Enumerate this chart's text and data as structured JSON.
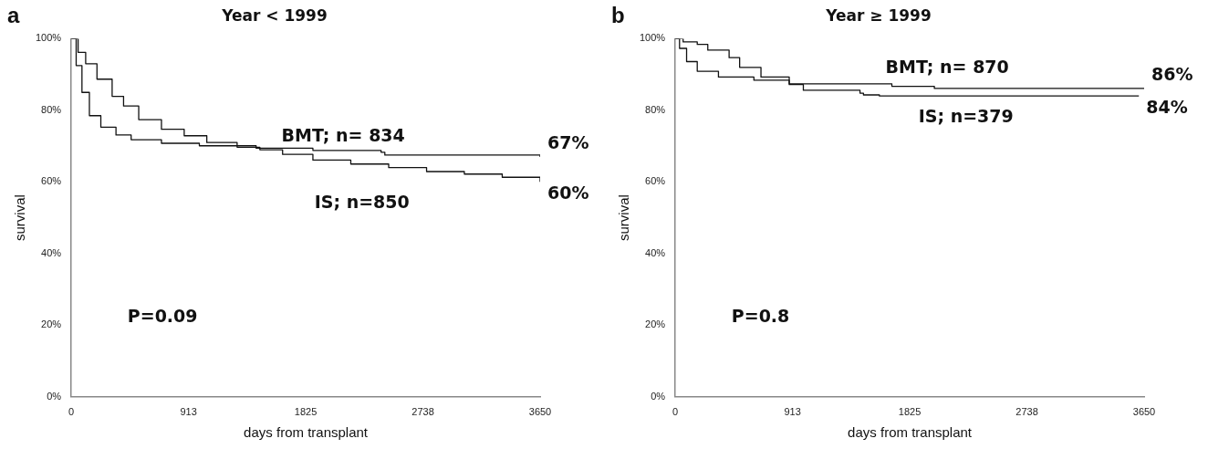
{
  "chart_data": [
    {
      "type": "step",
      "title": "Year < 1999",
      "xlabel": "days from transplant",
      "ylabel": "survival",
      "xlim": [
        0,
        3650
      ],
      "xticks": [
        0,
        913,
        1825,
        2738,
        3650
      ],
      "ylim": [
        0,
        100
      ],
      "yticks": [
        {
          "value": 0,
          "label": "0%"
        },
        {
          "value": 20,
          "label": "20%"
        },
        {
          "value": 40,
          "label": "40%"
        },
        {
          "value": 60,
          "label": "60%"
        },
        {
          "value": 80,
          "label": "80%"
        },
        {
          "value": 100,
          "label": "100%"
        }
      ],
      "grid": false,
      "legend": false,
      "series": [
        {
          "name": "BMT; n= 834",
          "color": "#111111",
          "x": [
            0,
            38,
            83,
            141,
            230,
            348,
            466,
            702,
            997,
            1439,
            1881,
            2412,
            2441,
            3650
          ],
          "values": [
            100,
            92.5,
            85,
            78.5,
            75.3,
            73.1,
            71.8,
            70.8,
            70.1,
            69.4,
            68.8,
            68.3,
            67.5,
            67
          ],
          "value_labels": [
            null,
            null,
            null,
            null,
            null,
            null,
            null,
            null,
            null,
            null,
            null,
            null,
            null,
            "67%"
          ]
        },
        {
          "name": "IS; n=850",
          "color": "#111111",
          "x": [
            0,
            53,
            112,
            200,
            318,
            407,
            525,
            702,
            879,
            1055,
            1291,
            1468,
            1645,
            1881,
            2176,
            2471,
            2766,
            3060,
            3355,
            3650
          ],
          "values": [
            100,
            96.2,
            93,
            88.7,
            83.9,
            81.2,
            77.4,
            74.7,
            72.9,
            71,
            69.7,
            69,
            67.7,
            66.1,
            65,
            64,
            62.9,
            62.2,
            61.3,
            60
          ],
          "value_labels": [
            null,
            null,
            null,
            null,
            null,
            null,
            null,
            null,
            null,
            null,
            null,
            null,
            null,
            null,
            null,
            null,
            null,
            null,
            null,
            "60%"
          ]
        }
      ],
      "annotations": [
        "a",
        "P=0.09"
      ]
    },
    {
      "type": "step",
      "title": "Year ≥ 1999",
      "xlabel": "days from transplant",
      "ylabel": "survival",
      "xlim": [
        0,
        3650
      ],
      "xticks": [
        0,
        913,
        1825,
        2738,
        3650
      ],
      "ylim": [
        0,
        100
      ],
      "yticks": [
        {
          "value": 0,
          "label": "0%"
        },
        {
          "value": 20,
          "label": "20%"
        },
        {
          "value": 40,
          "label": "40%"
        },
        {
          "value": 60,
          "label": "60%"
        },
        {
          "value": 80,
          "label": "80%"
        },
        {
          "value": 100,
          "label": "100%"
        }
      ],
      "grid": false,
      "legend": false,
      "series": [
        {
          "name": "BMT; n= 870",
          "color": "#111111",
          "x": [
            0,
            33,
            88,
            171,
            336,
            612,
            887,
            1686,
            2017,
            3650
          ],
          "values": [
            100,
            97.3,
            93.6,
            90.9,
            89.3,
            88.4,
            87.4,
            86.7,
            86.1,
            86
          ],
          "value_labels": [
            null,
            null,
            null,
            null,
            null,
            null,
            null,
            null,
            null,
            "86%"
          ]
        },
        {
          "name": "IS; n=379",
          "color": "#111111",
          "x": [
            0,
            61,
            171,
            253,
            419,
            501,
            667,
            887,
            997,
            1438,
            1465,
            1589,
            3609
          ],
          "values": [
            100,
            99.1,
            98.4,
            96.8,
            94.7,
            92,
            89.3,
            87.2,
            85.6,
            84.8,
            84.3,
            84,
            84
          ],
          "value_labels": [
            null,
            null,
            null,
            null,
            null,
            null,
            null,
            null,
            null,
            null,
            null,
            null,
            "84%"
          ]
        }
      ],
      "annotations": [
        "b",
        "P=0.8"
      ]
    }
  ]
}
